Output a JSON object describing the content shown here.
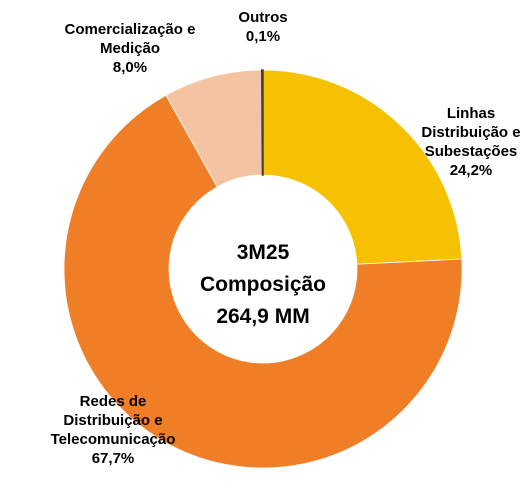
{
  "chart_data": {
    "type": "donut",
    "title": [
      "3M25",
      "Composição",
      "264,9 MM"
    ],
    "categories": [
      "Linhas Distribuição e Subestações",
      "Redes de Distribuição e Telecomunicação",
      "Comercialização e Medição",
      "Outros"
    ],
    "values": [
      24.2,
      67.7,
      8.0,
      0.1
    ],
    "value_labels": [
      "24,2%",
      "67,7%",
      "8,0%",
      "0,1%"
    ],
    "colors": [
      "#F6C100",
      "#F07E26",
      "#F4C4A2",
      "#404040"
    ]
  }
}
